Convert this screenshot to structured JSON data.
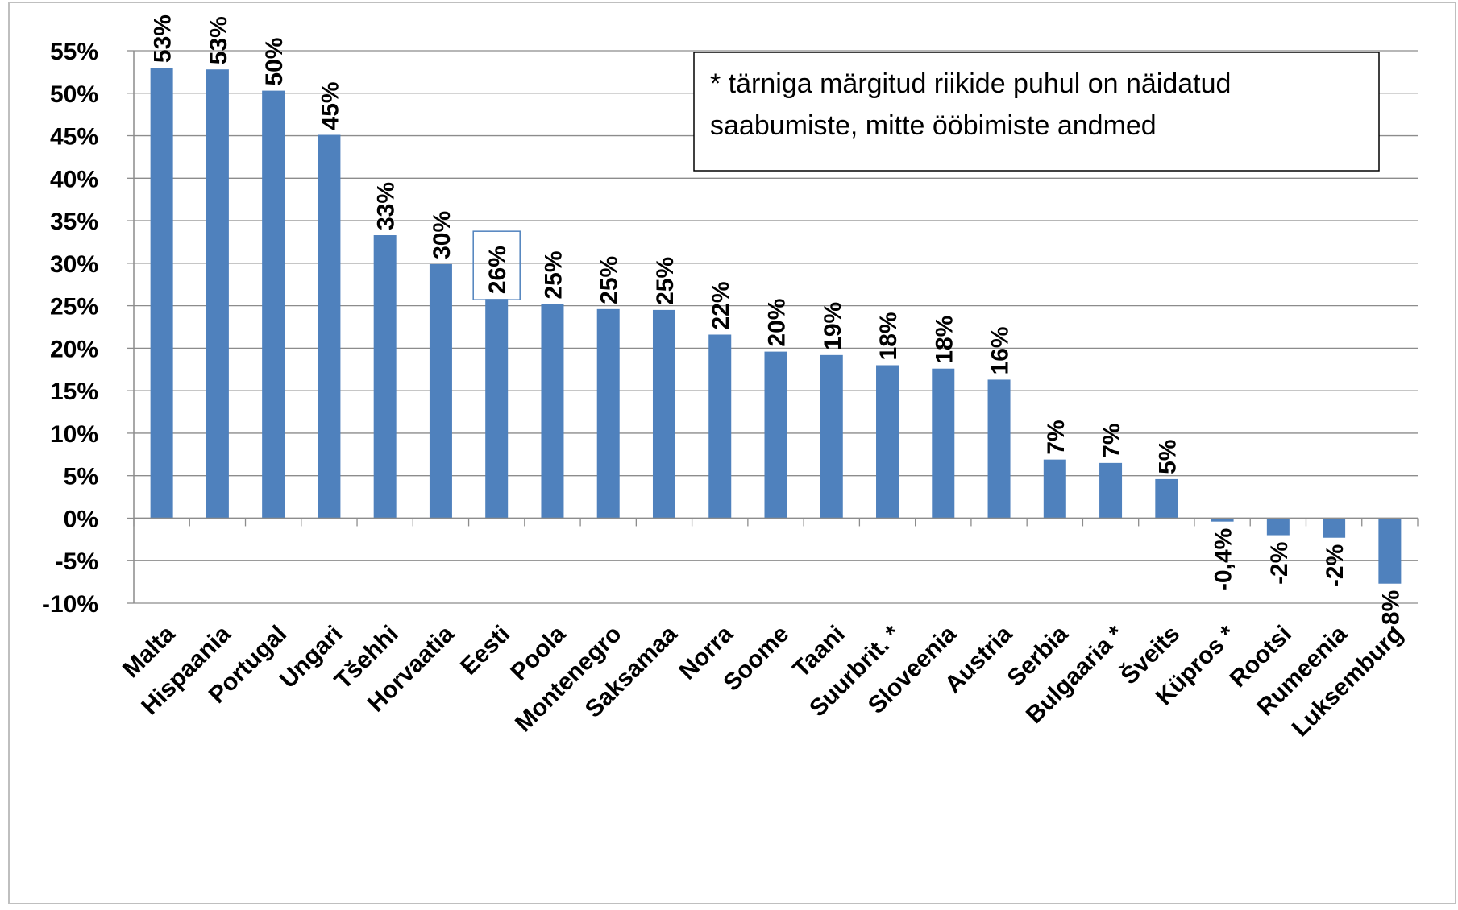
{
  "chart_data": {
    "type": "bar",
    "title": "",
    "xlabel": "",
    "ylabel": "",
    "ylim": [
      -10,
      55
    ],
    "yticks": [
      55,
      50,
      45,
      40,
      35,
      30,
      25,
      20,
      15,
      10,
      5,
      0,
      -5,
      -10
    ],
    "ytick_labels": [
      "55%",
      "50%",
      "45%",
      "40%",
      "35%",
      "30%",
      "25%",
      "20%",
      "15%",
      "10%",
      "5%",
      "0%",
      "-5%",
      "-10%"
    ],
    "grid": true,
    "bar_color": "#4f81bd",
    "categories": [
      "Malta",
      "Hispaania",
      "Portugal",
      "Ungari",
      "Tšehhi",
      "Horvaatia",
      "Eesti",
      "Poola",
      "Montenegro",
      "Saksamaa",
      "Norra",
      "Soome",
      "Taani",
      "Suurbrit. *",
      "Sloveenia",
      "Austria",
      "Serbia",
      "Bulgaaria *",
      "Šveits",
      "Küpros *",
      "Rootsi",
      "Rumeenia",
      "Luksemburg"
    ],
    "values": [
      53.0,
      52.8,
      50.3,
      45.1,
      33.3,
      29.9,
      25.8,
      25.2,
      24.6,
      24.5,
      21.6,
      19.6,
      19.2,
      18.0,
      17.6,
      16.3,
      6.9,
      6.5,
      4.6,
      -0.4,
      -2.0,
      -2.3,
      -7.7
    ],
    "data_labels": [
      "53%",
      "53%",
      "50%",
      "45%",
      "33%",
      "30%",
      "26%",
      "25%",
      "25%",
      "25%",
      "22%",
      "20%",
      "19%",
      "18%",
      "18%",
      "16%",
      "7%",
      "7%",
      "5%",
      "-0,4%",
      "-2%",
      "-2%",
      "-8%"
    ],
    "highlighted_label": "Eesti",
    "note": {
      "line1": "* tärniga märgitud riikide puhul on näidatud",
      "line2": "saabumiste, mitte ööbimiste andmed"
    }
  }
}
